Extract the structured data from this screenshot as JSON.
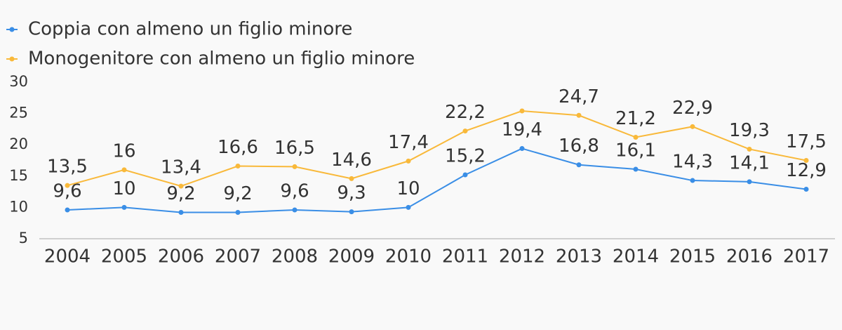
{
  "chart_data": {
    "type": "line",
    "categories": [
      "2004",
      "2005",
      "2006",
      "2007",
      "2008",
      "2009",
      "2010",
      "2011",
      "2012",
      "2013",
      "2014",
      "2015",
      "2016",
      "2017"
    ],
    "series": [
      {
        "name": "Coppia con almeno un figlio minore",
        "color": "#3a8ee6",
        "values": [
          9.6,
          10,
          9.2,
          9.2,
          9.6,
          9.3,
          10,
          15.2,
          19.4,
          16.8,
          16.1,
          14.3,
          14.1,
          12.9
        ],
        "value_labels": [
          "9,6",
          "10",
          "9,2",
          "9,2",
          "9,6",
          "9,3",
          "10",
          "15,2",
          "19,4",
          "16,8",
          "16,1",
          "14,3",
          "14,1",
          "12,9"
        ]
      },
      {
        "name": "Monogenitore con almeno un figlio minore",
        "color": "#f9b93a",
        "values": [
          13.5,
          16,
          13.4,
          16.6,
          16.5,
          14.6,
          17.4,
          22.2,
          25.4,
          24.7,
          21.2,
          22.9,
          19.3,
          17.5
        ],
        "value_labels": [
          "13,5",
          "16",
          "13,4",
          "16,6",
          "16,5",
          "14,6",
          "17,4",
          "22,2",
          "",
          "24,7",
          "21,2",
          "22,9",
          "19,3",
          "17,5"
        ]
      }
    ],
    "ylim": [
      5,
      30
    ],
    "yticks": [
      5,
      10,
      15,
      20,
      25,
      30
    ],
    "legend": "top-left"
  }
}
